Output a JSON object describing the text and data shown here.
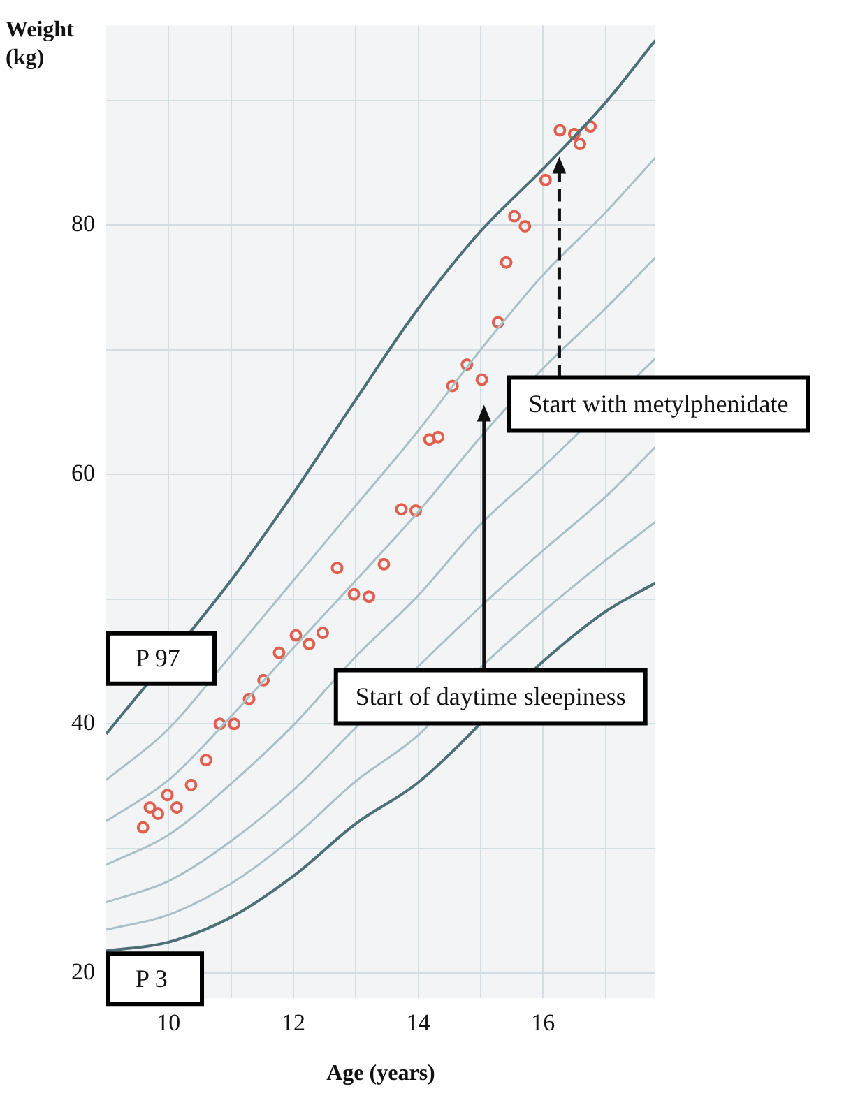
{
  "chart_data": {
    "type": "line",
    "xlabel": "Age (years)",
    "ylabel": "Weight (kg)",
    "xlim": [
      9,
      17.8
    ],
    "xticks": [
      10,
      {
        "value": 11,
        "label": null
      },
      12,
      {
        "value": 13,
        "label": null
      },
      14,
      {
        "value": 15,
        "label": null
      },
      16,
      {
        "value": 17,
        "label": null
      }
    ],
    "ylim": [
      18,
      96
    ],
    "yticks": [
      20,
      {
        "value": 30,
        "label": null
      },
      40,
      {
        "value": 50,
        "label": null
      },
      60,
      {
        "value": 70,
        "label": null
      },
      80,
      {
        "value": 90,
        "label": null
      }
    ],
    "grid": true,
    "marker": "none",
    "line_style": "solid",
    "series": [
      {
        "name": "P 97",
        "color": "#4d6f78",
        "x": [
          9,
          10,
          11,
          12,
          13,
          14,
          15,
          16,
          17,
          17.8
        ],
        "values": [
          39.2,
          null,
          51.5,
          58.5,
          66,
          73.3,
          79.5,
          84.5,
          89.8,
          94.8
        ]
      },
      {
        "color": "#a8c0c7",
        "x": [
          9,
          10,
          11,
          12,
          13,
          14,
          15,
          16,
          17,
          17.8
        ],
        "values": [
          35.5,
          39.6,
          45.5,
          51.5,
          57.5,
          63.5,
          70,
          76,
          81,
          85.4
        ]
      },
      {
        "color": "#a8c0c7",
        "x": [
          9,
          10,
          11,
          12,
          13,
          14,
          15,
          16,
          17,
          17.8
        ],
        "values": [
          32.2,
          35.5,
          40.6,
          46.1,
          51.5,
          57,
          63,
          68.5,
          73.3,
          77.4
        ]
      },
      {
        "color": "#a8c0c7",
        "x": [
          9,
          10,
          11,
          12,
          13,
          14,
          15,
          16,
          17,
          17.8
        ],
        "values": [
          28.7,
          31.1,
          35.2,
          39.9,
          45.4,
          50.3,
          56,
          60.6,
          null,
          69.3
        ]
      },
      {
        "color": "#a8c0c7",
        "x": [
          9,
          10,
          11,
          12,
          13,
          14,
          15,
          16,
          17,
          17.8
        ],
        "values": [
          25.7,
          27.4,
          30.6,
          34.7,
          39.7,
          null,
          49.4,
          53.9,
          58.2,
          62.2
        ]
      },
      {
        "color": "#a8c0c7",
        "x": [
          9,
          10,
          11,
          12,
          13,
          14,
          15,
          16,
          17,
          17.8
        ],
        "values": [
          23.5,
          24.7,
          27.2,
          30.9,
          35.4,
          39.1,
          44.5,
          49,
          53.1,
          56.2
        ]
      },
      {
        "name": "P 3",
        "color": "#4d6f78",
        "x": [
          9,
          10,
          11,
          12,
          13,
          14,
          15,
          16,
          17,
          17.8
        ],
        "values": [
          21.8,
          22.5,
          24.5,
          27.8,
          32,
          35.3,
          null,
          45,
          49,
          51.3
        ]
      },
      {
        "type": "scatter",
        "marker": "circle",
        "color": "#e0604f",
        "x": [
          9.59,
          9.7,
          9.83,
          9.98,
          10.13,
          10.36,
          10.6,
          10.82,
          11.05,
          11.29,
          11.52,
          11.77,
          12.04,
          12.25,
          12.47,
          12.7,
          12.97,
          13.21,
          13.45,
          13.73,
          13.96,
          14.18,
          14.32,
          14.55,
          14.78,
          15.02,
          15.28,
          15.41,
          15.54,
          15.71,
          16.04,
          16.27,
          16.5,
          16.59,
          16.76
        ],
        "values": [
          31.7,
          33.3,
          32.8,
          34.3,
          33.3,
          35.1,
          37.1,
          40,
          40,
          42,
          43.5,
          45.7,
          47.1,
          46.4,
          47.3,
          52.5,
          50.4,
          50.2,
          52.8,
          57.2,
          57.1,
          62.8,
          63,
          67.1,
          68.8,
          67.6,
          72.2,
          77,
          80.7,
          79.9,
          83.6,
          87.6,
          87.3,
          86.5,
          87.9
        ]
      }
    ],
    "annotations": [
      "Start of daytime sleepiness",
      "Start with metylphenidate"
    ]
  }
}
